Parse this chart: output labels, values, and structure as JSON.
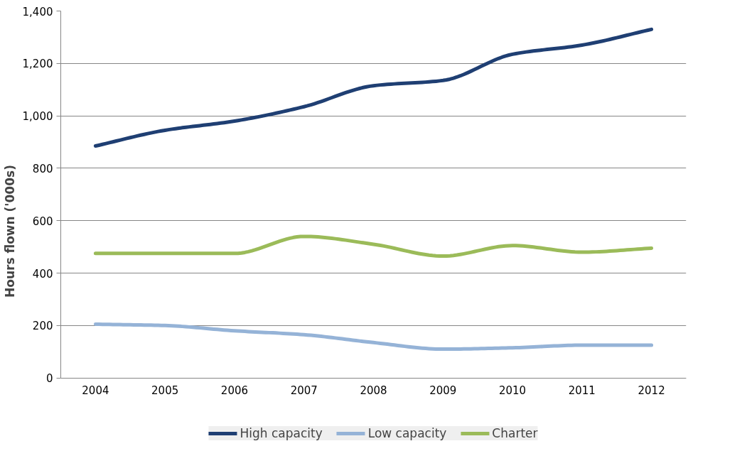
{
  "chart_data": {
    "type": "line",
    "ylabel": "Hours flown ('000s)",
    "categories": [
      "2004",
      "2005",
      "2006",
      "2007",
      "2008",
      "2009",
      "2010",
      "2011",
      "2012"
    ],
    "series": [
      {
        "name": "High capacity",
        "color": "#1f3f73",
        "values": [
          885,
          945,
          980,
          1035,
          1115,
          1135,
          1235,
          1270,
          1330
        ]
      },
      {
        "name": "Low capacity",
        "color": "#95b3d7",
        "values": [
          205,
          200,
          180,
          165,
          135,
          110,
          115,
          125,
          125
        ]
      },
      {
        "name": "Charter",
        "color": "#9bbb59",
        "values": [
          475,
          475,
          475,
          540,
          510,
          465,
          505,
          480,
          495
        ]
      }
    ],
    "ylim": [
      0,
      1400
    ],
    "yticks": [
      0,
      {
        "value": 200,
        "label": "200"
      },
      400,
      600,
      800,
      {
        "value": 1000,
        "label": "1,000"
      },
      {
        "value": 1200,
        "label": "1,200"
      },
      {
        "value": 1400,
        "label": "1,400"
      }
    ],
    "grid": "y",
    "legend": "bottom",
    "marker": "none",
    "line_style": "solid"
  }
}
